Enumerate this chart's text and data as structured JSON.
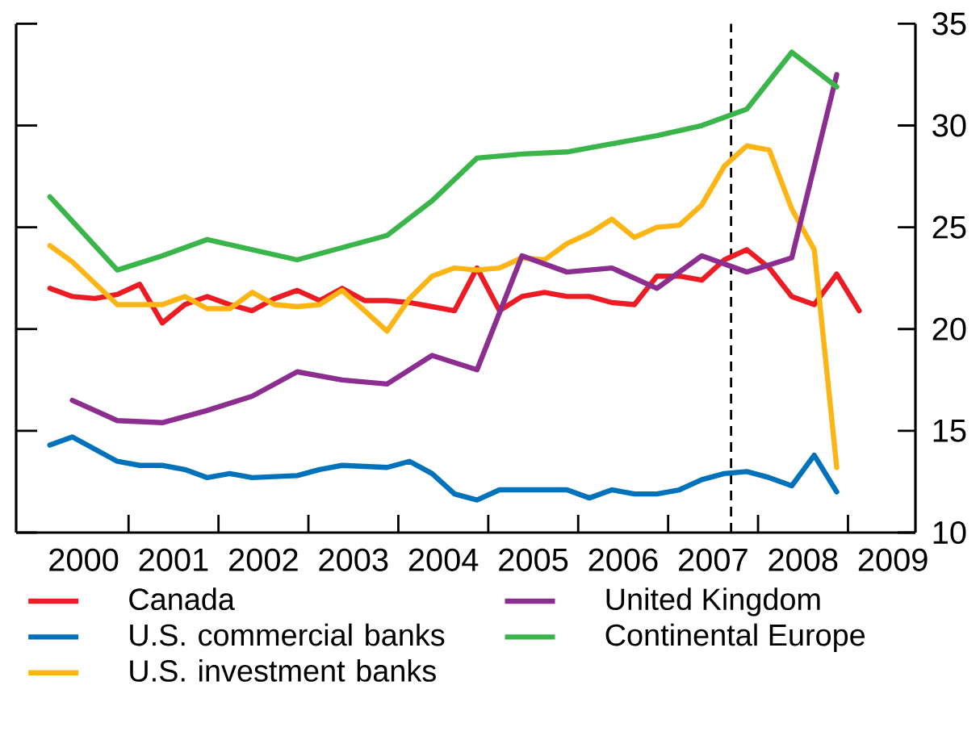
{
  "chart_data": {
    "type": "line",
    "xlim": [
      1999.75,
      2009.75
    ],
    "xticks": [
      {
        "value": 2000.5,
        "label": "2000"
      },
      {
        "value": 2001,
        "label": null
      },
      {
        "value": 2001.5,
        "label": "2001"
      },
      {
        "value": 2002,
        "label": null
      },
      {
        "value": 2002.5,
        "label": "2002"
      },
      {
        "value": 2003,
        "label": null
      },
      {
        "value": 2003.5,
        "label": "2003"
      },
      {
        "value": 2004,
        "label": null
      },
      {
        "value": 2004.5,
        "label": "2004"
      },
      {
        "value": 2005,
        "label": null
      },
      {
        "value": 2005.5,
        "label": "2005"
      },
      {
        "value": 2006,
        "label": null
      },
      {
        "value": 2006.5,
        "label": "2006"
      },
      {
        "value": 2007,
        "label": null
      },
      {
        "value": 2007.5,
        "label": "2007"
      },
      {
        "value": 2008,
        "label": null
      },
      {
        "value": 2008.5,
        "label": "2008"
      },
      {
        "value": 2009,
        "label": null
      },
      {
        "value": 2009.5,
        "label": "2009"
      }
    ],
    "ylim": [
      10,
      35
    ],
    "yticks": [
      10,
      15,
      20,
      25,
      30,
      35
    ],
    "legend": "bottom",
    "ref_lines": [
      {
        "axis": "x",
        "value": 2007.7,
        "color": "#000000",
        "line_style": "dashed"
      }
    ],
    "series": [
      {
        "name": "Canada",
        "color": "#ed1c24",
        "x": [
          2000.125,
          2000.375,
          2000.625,
          2000.875,
          2001.125,
          2001.375,
          2001.625,
          2001.875,
          2002.125,
          2002.375,
          2002.625,
          2002.875,
          2003.125,
          2003.375,
          2003.625,
          2003.875,
          2004.125,
          2004.375,
          2004.625,
          2004.875,
          2005.125,
          2005.375,
          2005.625,
          2005.875,
          2006.125,
          2006.375,
          2006.625,
          2006.875,
          2007.125,
          2007.375,
          2007.625,
          2007.875,
          2008.125,
          2008.375,
          2008.625,
          2008.875,
          2009.125
        ],
        "values": [
          22.0,
          21.6,
          21.5,
          21.7,
          22.2,
          20.3,
          21.2,
          21.6,
          21.2,
          20.9,
          21.5,
          21.9,
          21.4,
          22.0,
          21.4,
          21.4,
          21.3,
          21.1,
          20.9,
          23.0,
          20.9,
          21.6,
          21.8,
          21.6,
          21.6,
          21.3,
          21.2,
          22.6,
          22.6,
          22.4,
          23.4,
          23.9,
          23.0,
          21.6,
          21.2,
          22.7,
          20.9
        ]
      },
      {
        "name": "U.S. commercial banks",
        "color": "#0072bc",
        "x": [
          2000.125,
          2000.375,
          2000.875,
          2001.125,
          2001.375,
          2001.625,
          2001.875,
          2002.125,
          2002.375,
          2002.875,
          2003.125,
          2003.375,
          2003.875,
          2004.125,
          2004.375,
          2004.625,
          2004.875,
          2005.125,
          2005.375,
          2005.625,
          2005.875,
          2006.125,
          2006.375,
          2006.625,
          2006.875,
          2007.125,
          2007.375,
          2007.625,
          2007.875,
          2008.125,
          2008.375,
          2008.625,
          2008.875
        ],
        "values": [
          14.3,
          14.7,
          13.5,
          13.3,
          13.3,
          13.1,
          12.7,
          12.9,
          12.7,
          12.8,
          13.1,
          13.3,
          13.2,
          13.5,
          12.9,
          11.9,
          11.6,
          12.1,
          12.1,
          12.1,
          12.1,
          11.7,
          12.1,
          11.9,
          11.9,
          12.1,
          12.6,
          12.9,
          13.0,
          12.7,
          12.3,
          13.8,
          12.0
        ]
      },
      {
        "name": "U.S. investment banks",
        "color": "#fdb515",
        "x": [
          2000.125,
          2000.375,
          2000.875,
          2001.125,
          2001.375,
          2001.625,
          2001.875,
          2002.125,
          2002.375,
          2002.625,
          2002.875,
          2003.125,
          2003.375,
          2003.625,
          2003.875,
          2004.125,
          2004.375,
          2004.625,
          2004.875,
          2005.125,
          2005.375,
          2005.625,
          2005.875,
          2006.125,
          2006.375,
          2006.625,
          2006.875,
          2007.125,
          2007.375,
          2007.625,
          2007.875,
          2008.125,
          2008.375,
          2008.625,
          2008.875
        ],
        "values": [
          24.1,
          23.3,
          21.2,
          21.2,
          21.2,
          21.6,
          21.0,
          21.0,
          21.8,
          21.2,
          21.1,
          21.2,
          21.9,
          20.9,
          19.9,
          21.5,
          22.6,
          23.0,
          22.9,
          23.0,
          23.5,
          23.4,
          24.2,
          24.7,
          25.4,
          24.5,
          25.0,
          25.1,
          26.1,
          28.0,
          29.0,
          28.8,
          25.9,
          23.9,
          13.2
        ]
      },
      {
        "name": "United Kingdom",
        "color": "#8b2e8f",
        "x": [
          2000.375,
          2000.875,
          2001.375,
          2001.875,
          2002.375,
          2002.875,
          2003.375,
          2003.875,
          2004.375,
          2004.875,
          2005.375,
          2005.875,
          2006.375,
          2006.875,
          2007.375,
          2007.875,
          2008.375,
          2008.875
        ],
        "values": [
          16.5,
          15.5,
          15.4,
          16.0,
          16.7,
          17.9,
          17.5,
          17.3,
          18.7,
          18.0,
          23.6,
          22.8,
          23.0,
          22.0,
          23.6,
          22.8,
          23.5,
          32.5
        ]
      },
      {
        "name": "Continental Europe",
        "color": "#3ab54a",
        "x": [
          2000.125,
          2000.875,
          2001.375,
          2001.875,
          2002.875,
          2003.875,
          2004.375,
          2004.875,
          2005.375,
          2005.875,
          2006.375,
          2006.875,
          2007.375,
          2007.875,
          2008.375,
          2008.875
        ],
        "values": [
          26.5,
          22.9,
          23.6,
          24.4,
          23.4,
          24.6,
          26.3,
          28.4,
          28.6,
          28.7,
          29.1,
          29.5,
          30.0,
          30.8,
          33.6,
          31.9
        ]
      }
    ]
  }
}
